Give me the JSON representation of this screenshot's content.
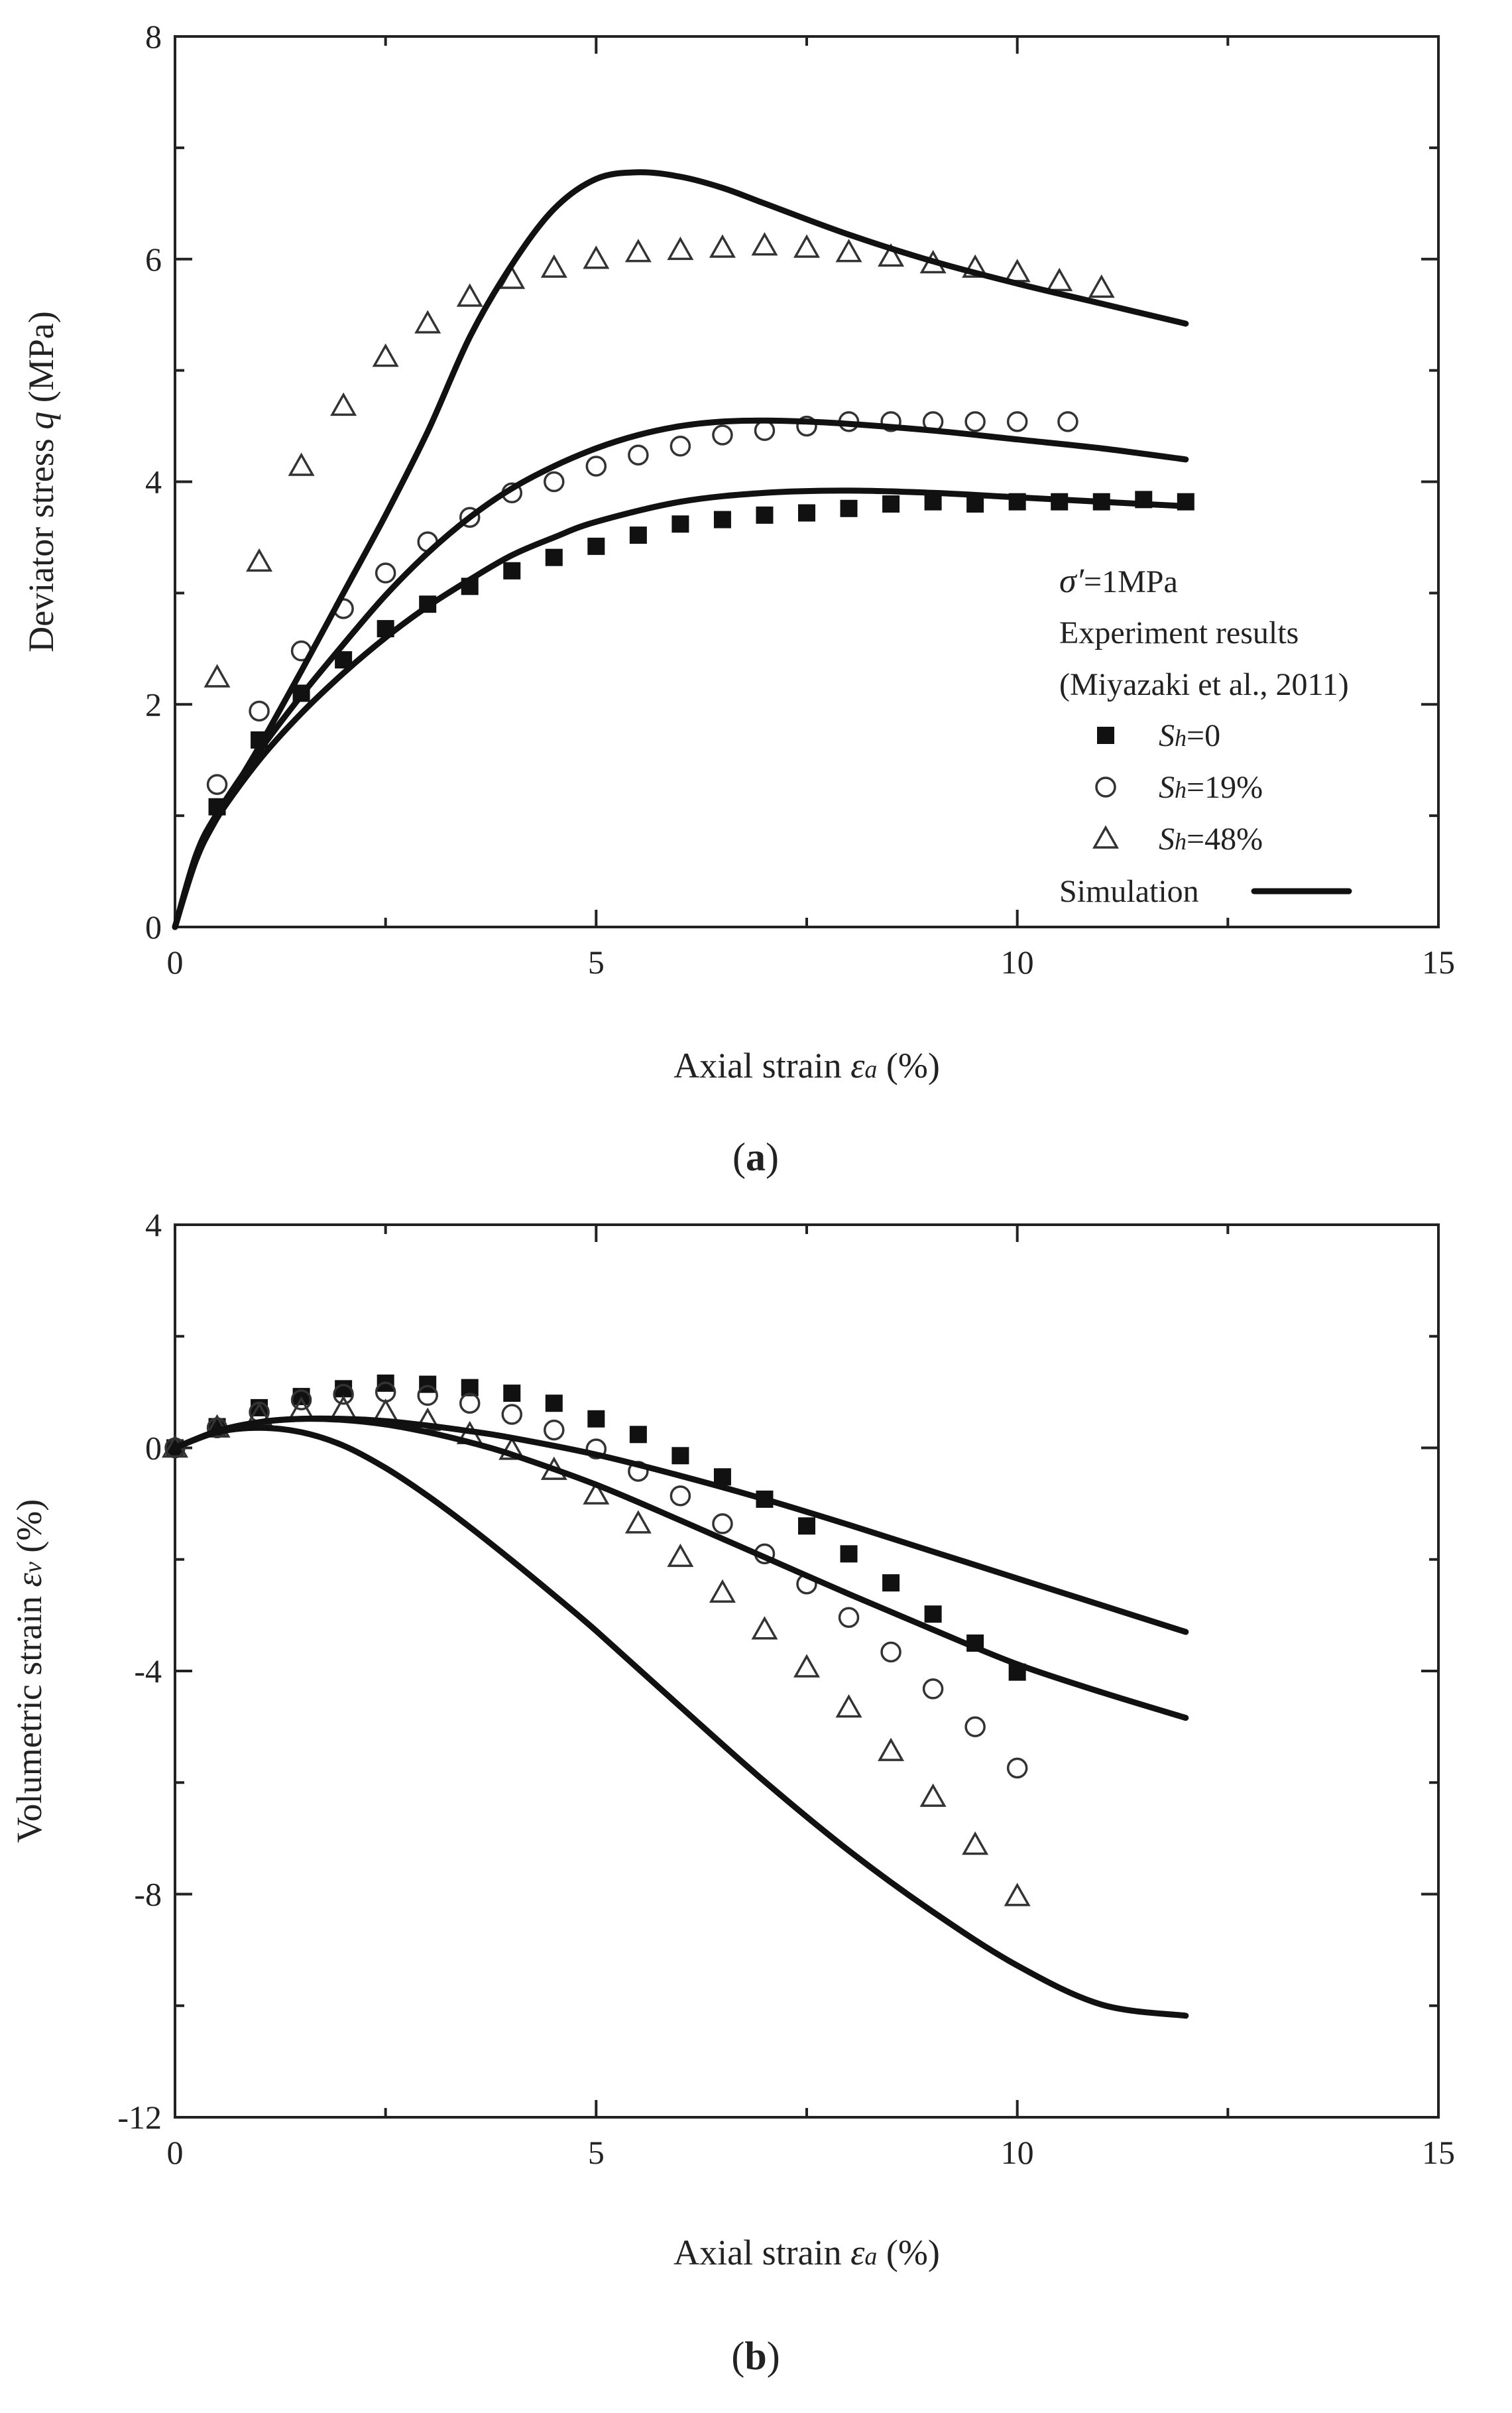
{
  "chart_data": [
    {
      "type": "line",
      "panel": "(a)",
      "panel_letter": "a",
      "title": "",
      "xlabel": {
        "text": "Axial strain ",
        "symbol": "ε",
        "sub": "a",
        "unit": " (%)"
      },
      "ylabel": {
        "text": "Deviator stress ",
        "symbol": "q",
        "unit": " (MPa)"
      },
      "xlim": [
        0,
        15
      ],
      "ylim": [
        0,
        8
      ],
      "xticks": [
        0,
        5,
        10,
        15
      ],
      "yticks": [
        0,
        2,
        4,
        6,
        8
      ],
      "xtick_labels": [
        "0",
        "5",
        "10",
        "15"
      ],
      "ytick_labels": [
        "0",
        "2",
        "4",
        "6",
        "8"
      ],
      "legend": {
        "placement": "right",
        "condition": {
          "symbol": "σ′",
          "text": "=1MPa"
        },
        "heading1": "Experiment results",
        "heading2": "(Miyazaki et al., 2011)",
        "simulation_label": "Simulation",
        "entries": [
          {
            "marker": "square",
            "prefix": "S",
            "sub": "h",
            "text": "=0"
          },
          {
            "marker": "circle",
            "prefix": "S",
            "sub": "h",
            "text": "=19%"
          },
          {
            "marker": "triangle",
            "prefix": "S",
            "sub": "h",
            "text": "=48%"
          }
        ]
      },
      "series": [
        {
          "name": "Sh=0",
          "marker": "square",
          "x": [
            0.5,
            1,
            1.5,
            2,
            2.5,
            3,
            3.5,
            4,
            4.5,
            5,
            5.5,
            6,
            6.5,
            7,
            7.5,
            8,
            8.5,
            9,
            9.5,
            10,
            10.5,
            11,
            11.5,
            12
          ],
          "y": [
            1.08,
            1.68,
            2.1,
            2.4,
            2.68,
            2.9,
            3.06,
            3.2,
            3.32,
            3.42,
            3.52,
            3.62,
            3.66,
            3.7,
            3.72,
            3.76,
            3.8,
            3.82,
            3.8,
            3.82,
            3.82,
            3.82,
            3.84,
            3.82
          ]
        },
        {
          "name": "Sh=19%",
          "marker": "circle",
          "x": [
            0.5,
            1,
            1.5,
            2,
            2.5,
            3,
            3.5,
            4,
            4.5,
            5,
            5.5,
            6,
            6.5,
            7,
            7.5,
            8,
            8.5,
            9,
            9.5,
            10,
            10.6
          ],
          "y": [
            1.28,
            1.94,
            2.48,
            2.86,
            3.18,
            3.46,
            3.68,
            3.9,
            4.0,
            4.14,
            4.24,
            4.32,
            4.42,
            4.46,
            4.5,
            4.54,
            4.54,
            4.54,
            4.54,
            4.54,
            4.54
          ]
        },
        {
          "name": "Sh=48%",
          "marker": "triangle",
          "x": [
            0.5,
            1,
            1.5,
            2,
            2.5,
            3,
            3.5,
            4,
            4.5,
            5,
            5.5,
            6,
            6.5,
            7,
            7.5,
            8,
            8.5,
            9,
            9.5,
            10,
            10.5,
            11
          ],
          "y": [
            2.24,
            3.28,
            4.14,
            4.68,
            5.12,
            5.42,
            5.66,
            5.82,
            5.92,
            6.0,
            6.06,
            6.08,
            6.1,
            6.12,
            6.1,
            6.06,
            6.02,
            5.96,
            5.92,
            5.88,
            5.8,
            5.74
          ]
        },
        {
          "name": "Simulation Sh=0",
          "marker": "line",
          "x": [
            0,
            0.25,
            0.5,
            1,
            1.5,
            2,
            2.5,
            3,
            3.5,
            4,
            4.5,
            5,
            6,
            7,
            8,
            9,
            10,
            11,
            12
          ],
          "y": [
            0,
            0.62,
            0.98,
            1.5,
            1.92,
            2.28,
            2.6,
            2.88,
            3.12,
            3.34,
            3.5,
            3.64,
            3.82,
            3.9,
            3.92,
            3.9,
            3.86,
            3.82,
            3.78
          ]
        },
        {
          "name": "Simulation Sh=19%",
          "marker": "line",
          "x": [
            0,
            0.25,
            0.5,
            1,
            1.5,
            2,
            2.5,
            3,
            3.5,
            4,
            4.5,
            5,
            5.5,
            6,
            6.5,
            7,
            7.5,
            8,
            9,
            10,
            11,
            12
          ],
          "y": [
            0,
            0.65,
            1.02,
            1.58,
            2.08,
            2.54,
            2.98,
            3.36,
            3.68,
            3.94,
            4.14,
            4.3,
            4.42,
            4.5,
            4.54,
            4.55,
            4.54,
            4.52,
            4.46,
            4.38,
            4.3,
            4.2
          ]
        },
        {
          "name": "Simulation Sh=48%",
          "marker": "line",
          "x": [
            0,
            0.25,
            0.5,
            1,
            1.5,
            2,
            2.5,
            3,
            3.5,
            4,
            4.5,
            5,
            5.5,
            6,
            6.5,
            7,
            8,
            9,
            10,
            11,
            12
          ],
          "y": [
            0,
            0.6,
            0.98,
            1.62,
            2.3,
            3.0,
            3.7,
            4.45,
            5.3,
            5.95,
            6.45,
            6.72,
            6.78,
            6.74,
            6.64,
            6.5,
            6.22,
            5.98,
            5.78,
            5.6,
            5.42
          ]
        }
      ]
    },
    {
      "type": "line",
      "panel": "(b)",
      "panel_letter": "b",
      "title": "",
      "xlabel": {
        "text": "Axial strain ",
        "symbol": "ε",
        "sub": "a",
        "unit": " (%)"
      },
      "ylabel": {
        "text": "Volumetric strain ",
        "symbol": "ε",
        "sub": "v",
        "unit": " (%)"
      },
      "xlim": [
        0,
        15
      ],
      "ylim": [
        -12,
        4
      ],
      "xticks": [
        0,
        5,
        10,
        15
      ],
      "yticks": [
        -12,
        -8,
        -4,
        0,
        4
      ],
      "xtick_labels": [
        "0",
        "5",
        "10",
        "15"
      ],
      "ytick_labels": [
        "-12",
        "-8",
        "-4",
        "0",
        "4"
      ],
      "series": [
        {
          "name": "Sh=0",
          "marker": "square",
          "x": [
            0,
            0.5,
            1,
            1.5,
            2,
            2.5,
            3,
            3.5,
            4,
            4.5,
            5,
            5.5,
            6,
            6.5,
            7,
            7.5,
            8,
            8.5,
            9,
            9.5,
            10
          ],
          "y": [
            0,
            0.38,
            0.72,
            0.92,
            1.06,
            1.16,
            1.14,
            1.08,
            0.98,
            0.8,
            0.52,
            0.24,
            -0.14,
            -0.52,
            -0.92,
            -1.4,
            -1.9,
            -2.42,
            -2.98,
            -3.5,
            -4.02
          ]
        },
        {
          "name": "Sh=19%",
          "marker": "circle",
          "x": [
            0,
            0.5,
            1,
            1.5,
            2,
            2.5,
            3,
            3.5,
            4,
            4.5,
            5,
            5.5,
            6,
            6.5,
            7,
            7.5,
            8,
            8.5,
            9,
            9.5,
            10
          ],
          "y": [
            0,
            0.36,
            0.64,
            0.86,
            0.96,
            1.0,
            0.94,
            0.8,
            0.6,
            0.32,
            -0.02,
            -0.42,
            -0.86,
            -1.36,
            -1.9,
            -2.44,
            -3.04,
            -3.66,
            -4.32,
            -5.0,
            -5.74
          ]
        },
        {
          "name": "Sh=48%",
          "marker": "triangle",
          "x": [
            0,
            0.5,
            1,
            1.5,
            2,
            2.5,
            3,
            3.5,
            4,
            4.5,
            5,
            5.5,
            6,
            6.5,
            7,
            7.5,
            8,
            8.5,
            9,
            9.5,
            10
          ],
          "y": [
            0,
            0.36,
            0.58,
            0.68,
            0.7,
            0.64,
            0.48,
            0.24,
            -0.04,
            -0.4,
            -0.84,
            -1.36,
            -1.96,
            -2.6,
            -3.26,
            -3.94,
            -4.66,
            -5.44,
            -6.26,
            -7.12,
            -8.04
          ]
        },
        {
          "name": "Simulation Sh=0",
          "marker": "line",
          "x": [
            0,
            0.5,
            1,
            1.5,
            2,
            2.5,
            3,
            3.5,
            4,
            5,
            6,
            7,
            8,
            9,
            10,
            11,
            12
          ],
          "y": [
            0,
            0.3,
            0.46,
            0.52,
            0.52,
            0.48,
            0.4,
            0.3,
            0.18,
            -0.12,
            -0.5,
            -0.92,
            -1.38,
            -1.86,
            -2.34,
            -2.82,
            -3.3
          ]
        },
        {
          "name": "Simulation Sh=19%",
          "marker": "line",
          "x": [
            0,
            0.5,
            1,
            1.5,
            2,
            2.5,
            3,
            3.5,
            4,
            5,
            6,
            7,
            8,
            9,
            10,
            11,
            12
          ],
          "y": [
            0,
            0.3,
            0.46,
            0.52,
            0.5,
            0.42,
            0.28,
            0.1,
            -0.12,
            -0.66,
            -1.3,
            -1.96,
            -2.62,
            -3.26,
            -3.88,
            -4.38,
            -4.84
          ]
        },
        {
          "name": "Simulation Sh=48%",
          "marker": "line",
          "x": [
            0,
            0.5,
            1,
            1.5,
            2,
            2.5,
            3,
            3.5,
            4,
            4.5,
            5,
            6,
            7,
            8,
            9,
            10,
            11,
            12
          ],
          "y": [
            0,
            0.28,
            0.36,
            0.28,
            0.04,
            -0.36,
            -0.86,
            -1.42,
            -2.02,
            -2.64,
            -3.28,
            -4.64,
            -5.98,
            -7.22,
            -8.32,
            -9.28,
            -9.98,
            -10.18
          ]
        }
      ]
    }
  ]
}
